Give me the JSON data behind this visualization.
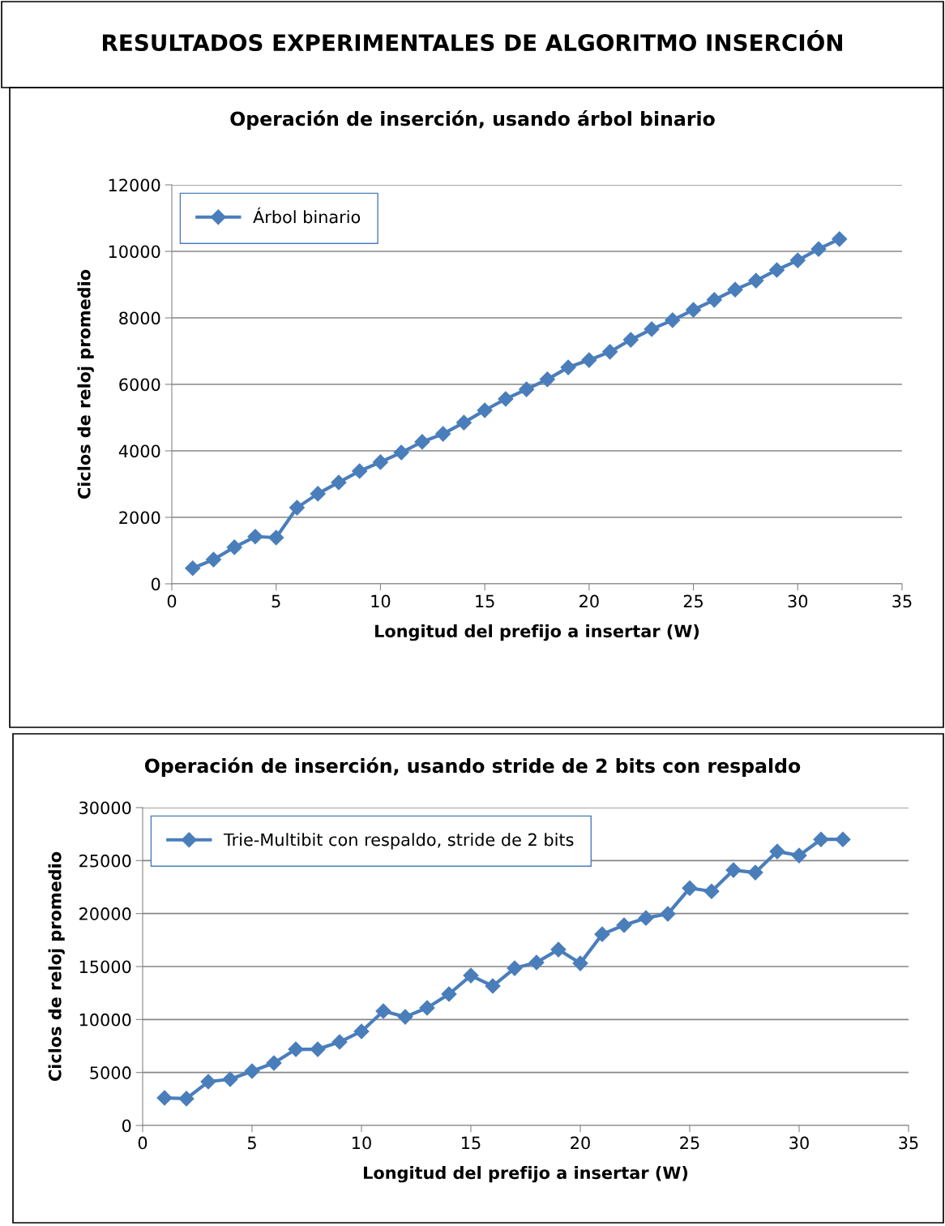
{
  "chart_data": [
    {
      "type": "other",
      "title": "RESULTADOS EXPERIMENTALES DE ALGORITMO INSERCIÓN"
    },
    {
      "type": "line",
      "title": "Operación de inserción, usando árbol binario",
      "xlabel": "Longitud del prefijo a insertar (W)",
      "ylabel": "Ciclos de reloj promedio",
      "x": [
        1,
        2,
        3,
        4,
        5,
        6,
        7,
        8,
        9,
        10,
        11,
        12,
        13,
        14,
        15,
        16,
        17,
        18,
        19,
        20,
        21,
        22,
        23,
        24,
        25,
        26,
        27,
        28,
        29,
        30,
        31,
        32
      ],
      "series": [
        {
          "name": "Árbol binario",
          "color": "#4a7ebb",
          "values": [
            470,
            730,
            1100,
            1420,
            1390,
            2290,
            2710,
            3050,
            3390,
            3660,
            3950,
            4270,
            4510,
            4850,
            5220,
            5560,
            5850,
            6150,
            6510,
            6730,
            6980,
            7340,
            7660,
            7930,
            8240,
            8540,
            8850,
            9120,
            9440,
            9730,
            10070,
            10370
          ]
        }
      ],
      "xlim": [
        0,
        35
      ],
      "xticks": [
        0,
        5,
        10,
        15,
        20,
        25,
        30,
        35
      ],
      "ylim": [
        0,
        12000
      ],
      "yticks": [
        0,
        2000,
        4000,
        6000,
        8000,
        10000,
        12000
      ],
      "grid": "y",
      "legend": "top left",
      "marker": "diamond",
      "line_style": "solid"
    },
    {
      "type": "line",
      "title": "Operación de inserción, usando stride de 2 bits con respaldo",
      "xlabel": "Longitud del prefijo a insertar (W)",
      "ylabel": "Ciclos de reloj promedio",
      "x": [
        1,
        2,
        3,
        4,
        5,
        6,
        7,
        8,
        9,
        10,
        11,
        12,
        13,
        14,
        15,
        16,
        17,
        18,
        19,
        20,
        21,
        22,
        23,
        24,
        25,
        26,
        27,
        28,
        29,
        30,
        31,
        32
      ],
      "series": [
        {
          "name": "Trie-Multibit con respaldo, stride de 2 bits",
          "color": "#4a7ebb",
          "values": [
            2600,
            2530,
            4130,
            4360,
            5130,
            5890,
            7190,
            7190,
            7880,
            8880,
            10790,
            10250,
            11100,
            12400,
            14150,
            13160,
            14840,
            15380,
            16600,
            15300,
            18050,
            18900,
            19580,
            19970,
            22400,
            22100,
            24100,
            23870,
            25860,
            25480,
            27000,
            27000
          ]
        }
      ],
      "xlim": [
        0,
        35
      ],
      "xticks": [
        0,
        5,
        10,
        15,
        20,
        25,
        30,
        35
      ],
      "ylim": [
        0,
        30000
      ],
      "yticks": [
        0,
        5000,
        10000,
        15000,
        20000,
        25000,
        30000
      ],
      "grid": "y",
      "legend": "top left",
      "marker": "diamond",
      "line_style": "solid"
    }
  ]
}
